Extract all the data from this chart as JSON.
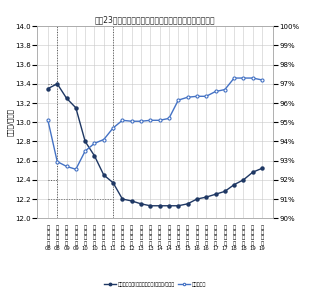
{
  "title": "東京23区の賃貸マンションの賃料収入単価・平均稼働率",
  "ylabel_left": "（千円/月坪）",
  "ylim_left": [
    12.0,
    14.0
  ],
  "ylim_right": [
    0.9,
    1.0
  ],
  "yticks_left": [
    12.0,
    12.2,
    12.4,
    12.6,
    12.8,
    13.0,
    13.2,
    13.4,
    13.6,
    13.8,
    14.0
  ],
  "yticks_right": [
    0.9,
    0.91,
    0.92,
    0.93,
    0.94,
    0.95,
    0.96,
    0.97,
    0.98,
    0.99,
    1.0
  ],
  "x_labels_top": [
    "前",
    "後",
    "前",
    "後",
    "前",
    "後",
    "前",
    "後",
    "前",
    "後",
    "前",
    "後",
    "前",
    "後",
    "前",
    "後",
    "前",
    "後",
    "前",
    "後",
    "前",
    "後",
    "前",
    "後"
  ],
  "x_labels_mid": [
    "上",
    "下",
    "上",
    "下",
    "上",
    "下",
    "上",
    "下",
    "上",
    "下",
    "上",
    "下",
    "上",
    "下",
    "上",
    "下",
    "上",
    "下",
    "上",
    "下",
    "上",
    "下",
    "上",
    "下"
  ],
  "x_labels_mid2": [
    "半",
    "半",
    "半",
    "半",
    "半",
    "半",
    "半",
    "半",
    "半",
    "半",
    "半",
    "半",
    "半",
    "半",
    "半",
    "半",
    "半",
    "半",
    "半",
    "半",
    "半",
    "半",
    "半",
    "半"
  ],
  "x_labels_mid3": [
    "期",
    "期",
    "期",
    "期",
    "期",
    "期",
    "期",
    "期",
    "期",
    "期",
    "期",
    "期",
    "期",
    "期",
    "期",
    "期",
    "期",
    "期",
    "期",
    "期",
    "期",
    "期",
    "期",
    "期"
  ],
  "x_labels_year": [
    "08",
    "08",
    "09",
    "09",
    "10",
    "10",
    "11",
    "11",
    "12",
    "12",
    "13",
    "13",
    "14",
    "14",
    "15",
    "15",
    "16",
    "16",
    "17",
    "17",
    "18",
    "18",
    "19",
    "19"
  ],
  "rent_data": [
    13.35,
    13.4,
    13.25,
    13.15,
    12.8,
    12.65,
    12.45,
    12.37,
    12.2,
    12.18,
    12.15,
    12.13,
    12.13,
    12.13,
    12.13,
    12.15,
    12.2,
    12.22,
    12.25,
    12.28,
    12.35,
    12.4,
    12.48,
    12.52
  ],
  "occupancy_data": [
    0.951,
    0.9295,
    0.927,
    0.9255,
    0.935,
    0.939,
    0.941,
    0.947,
    0.951,
    0.9505,
    0.9505,
    0.951,
    0.951,
    0.952,
    0.9615,
    0.963,
    0.9635,
    0.9635,
    0.966,
    0.967,
    0.973,
    0.973,
    0.973,
    0.972
  ],
  "rent_color": "#1f3864",
  "occupancy_color": "#4472c4",
  "legend_rent": "賃料収入単価[稼働床ベース]（千円/月坪）",
  "legend_occ": "平均稼働率",
  "background_color": "#ffffff",
  "grid_color": "#c8c8c8"
}
